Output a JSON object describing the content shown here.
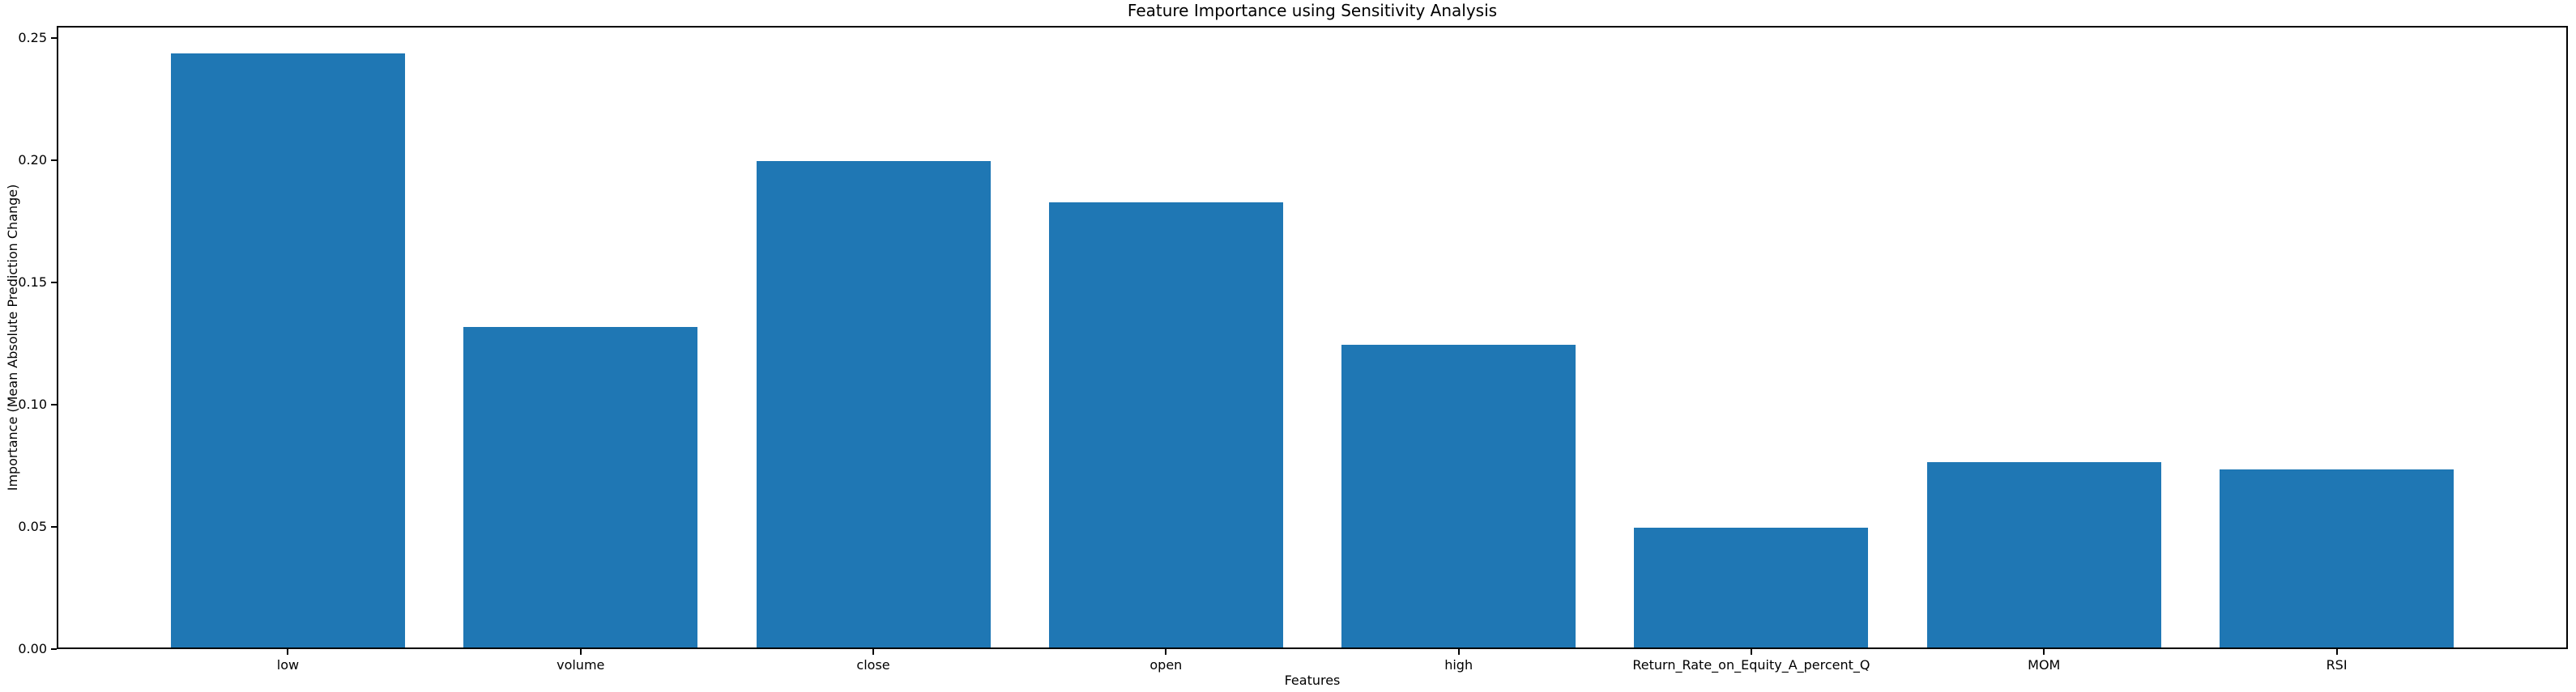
{
  "chart_data": {
    "type": "bar",
    "title": "Feature Importance using Sensitivity Analysis",
    "xlabel": "Features",
    "ylabel": "Importance (Mean Absolute Prediction Change)",
    "categories": [
      "low",
      "volume",
      "close",
      "open",
      "high",
      "Return_Rate_on_Equity_A_percent_Q",
      "MOM",
      "RSI"
    ],
    "values": [
      0.243,
      0.131,
      0.199,
      0.182,
      0.124,
      0.049,
      0.076,
      0.073
    ],
    "ylim": [
      0,
      0.255
    ],
    "yticks": [
      0.0,
      0.05,
      0.1,
      0.15,
      0.2,
      0.25
    ],
    "ytick_decimals": 2,
    "bar_color": "#1f77b4",
    "background_color": "#ffffff",
    "text_color": "#000000",
    "spine_color": "#000000",
    "grid": false,
    "legend_position": "none"
  }
}
